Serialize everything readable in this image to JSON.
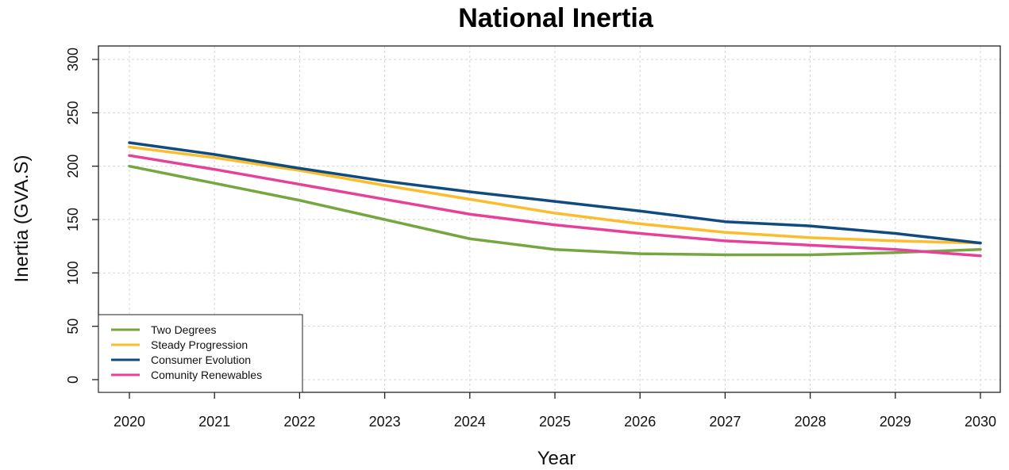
{
  "chart_data": {
    "type": "line",
    "title": "National Inertia",
    "xlabel": "Year",
    "ylabel": "Inertia (GVA.S)",
    "x": [
      2020,
      2021,
      2022,
      2023,
      2024,
      2025,
      2026,
      2027,
      2028,
      2029,
      2030
    ],
    "xlim": [
      2020,
      2030
    ],
    "ylim": [
      0,
      300
    ],
    "yticks": [
      0,
      50,
      100,
      150,
      200,
      250,
      300
    ],
    "grid": true,
    "legend_position": "bottom-left",
    "series": [
      {
        "name": "Two Degrees",
        "color": "#76a640",
        "values": [
          200,
          184,
          168,
          150,
          132,
          122,
          118,
          117,
          117,
          119,
          122
        ]
      },
      {
        "name": "Steady Progression",
        "color": "#fbbd2c",
        "values": [
          218,
          208,
          196,
          182,
          169,
          156,
          146,
          138,
          133,
          130,
          128
        ]
      },
      {
        "name": "Consumer Evolution",
        "color": "#0f4a80",
        "values": [
          222,
          211,
          198,
          186,
          176,
          167,
          158,
          148,
          144,
          137,
          128
        ]
      },
      {
        "name": "Comunity Renewables",
        "color": "#e8409a",
        "values": [
          210,
          197,
          183,
          169,
          155,
          145,
          137,
          130,
          126,
          122,
          116
        ]
      }
    ]
  }
}
